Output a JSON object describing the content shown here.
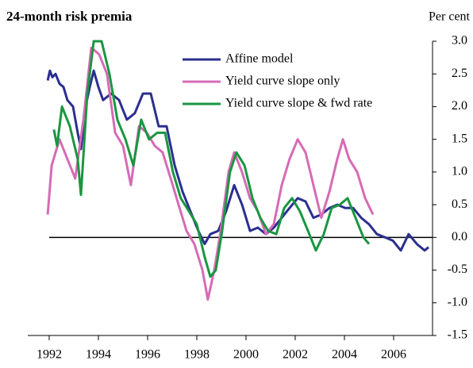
{
  "chart_data": {
    "type": "line",
    "title": "24-month risk premia",
    "y_axis_label": "Per cent",
    "xlim": [
      1991.13,
      2007.58
    ],
    "xticks": [
      1992,
      1994,
      1996,
      1998,
      2000,
      2002,
      2004,
      2006
    ],
    "ylim": [
      -1.5,
      3.0
    ],
    "yticks": [
      {
        "value": -1.5,
        "label": "-1.5"
      },
      {
        "value": -1,
        "label": "-1.0"
      },
      {
        "value": -0.5,
        "label": "-0.5"
      },
      {
        "value": 0,
        "label": "0.0"
      },
      {
        "value": 0.5,
        "label": "0.5"
      },
      {
        "value": 1,
        "label": "1.0"
      },
      {
        "value": 1.5,
        "label": "1.5"
      },
      {
        "value": 2,
        "label": "2.0"
      },
      {
        "value": 2.5,
        "label": "2.5"
      },
      {
        "value": 3,
        "label": "3.0"
      }
    ],
    "zero_line": true,
    "series": [
      {
        "name": "Affine model",
        "color": "#2b2f8f",
        "x": [
          1991.94,
          1992.03,
          1992.13,
          1992.26,
          1992.42,
          1992.58,
          1992.74,
          1992.97,
          1993.16,
          1993.29,
          1993.48,
          1993.65,
          1993.81,
          1994.0,
          1994.19,
          1994.52,
          1994.84,
          1995.16,
          1995.48,
          1995.81,
          1996.13,
          1996.45,
          1996.77,
          1997.1,
          1997.42,
          1997.74,
          1998.06,
          1998.32,
          1998.55,
          1998.87,
          1999.19,
          1999.52,
          1999.84,
          2000.16,
          2000.48,
          2000.81,
          2001.13,
          2001.45,
          2001.77,
          2002.1,
          2002.42,
          2002.74,
          2003.06,
          2003.39,
          2003.71,
          2004.03,
          2004.35,
          2004.68,
          2005.0,
          2005.32,
          2005.65,
          2005.97,
          2006.29,
          2006.61,
          2006.94,
          2007.26,
          2007.42
        ],
        "values": [
          2.4,
          2.55,
          2.45,
          2.5,
          2.35,
          2.3,
          2.1,
          2.0,
          1.6,
          1.35,
          2.0,
          2.3,
          2.55,
          2.3,
          2.1,
          2.2,
          2.1,
          1.8,
          1.9,
          2.2,
          2.2,
          1.7,
          1.7,
          1.1,
          0.7,
          0.4,
          0.1,
          -0.1,
          0.05,
          0.1,
          0.4,
          0.8,
          0.5,
          0.1,
          0.15,
          0.05,
          0.15,
          0.3,
          0.45,
          0.6,
          0.55,
          0.3,
          0.35,
          0.45,
          0.5,
          0.45,
          0.45,
          0.3,
          0.2,
          0.05,
          0,
          -0.05,
          -0.2,
          0.05,
          -0.1,
          -0.2,
          -0.15
        ]
      },
      {
        "name": "Yield curve slope only",
        "color": "#d66bb5",
        "x": [
          1991.94,
          1992.1,
          1992.42,
          1992.74,
          1993.06,
          1993.39,
          1993.71,
          1994.03,
          1994.35,
          1994.68,
          1995.0,
          1995.32,
          1995.65,
          1995.97,
          1996.29,
          1996.61,
          1996.94,
          1997.26,
          1997.58,
          1997.9,
          1998.23,
          1998.45,
          1998.71,
          1998.97,
          1999.29,
          1999.52,
          1999.84,
          2000.16,
          2000.48,
          2000.81,
          2001.13,
          2001.45,
          2001.77,
          2002.1,
          2002.42,
          2002.74,
          2003.06,
          2003.39,
          2003.71,
          2003.94,
          2004.19,
          2004.52,
          2004.84,
          2005.16
        ],
        "values": [
          0.35,
          1.1,
          1.5,
          1.2,
          0.9,
          1.8,
          2.9,
          2.8,
          2.5,
          1.6,
          1.4,
          0.8,
          1.7,
          1.6,
          1.4,
          1.3,
          0.9,
          0.5,
          0.1,
          -0.1,
          -0.5,
          -0.95,
          -0.5,
          0.1,
          1.0,
          1.3,
          1.0,
          0.6,
          0.4,
          0.05,
          0.2,
          0.8,
          1.2,
          1.5,
          1.3,
          0.8,
          0.3,
          0.7,
          1.2,
          1.5,
          1.2,
          1.0,
          0.6,
          0.35
        ]
      },
      {
        "name": "Yield curve slope & fwd rate",
        "color": "#1a9641",
        "x": [
          1992.19,
          1992.32,
          1992.52,
          1992.84,
          1993.16,
          1993.29,
          1993.55,
          1993.81,
          1994.13,
          1994.45,
          1994.77,
          1995.1,
          1995.42,
          1995.74,
          1996.06,
          1996.39,
          1996.71,
          1997.03,
          1997.35,
          1997.68,
          1998.0,
          1998.32,
          1998.55,
          1998.77,
          1999.03,
          1999.35,
          1999.61,
          1999.94,
          2000.26,
          2000.58,
          2000.9,
          2001.23,
          2001.55,
          2001.87,
          2002.19,
          2002.52,
          2002.84,
          2003.16,
          2003.48,
          2003.81,
          2004.13,
          2004.45,
          2004.77,
          2005.0
        ],
        "values": [
          1.65,
          1.4,
          2.0,
          1.7,
          1.2,
          0.65,
          2.2,
          3.0,
          3.0,
          2.5,
          1.8,
          1.5,
          1.1,
          1.8,
          1.5,
          1.6,
          1.6,
          1.0,
          0.6,
          0.4,
          0.2,
          -0.3,
          -0.6,
          -0.5,
          0.1,
          1.0,
          1.3,
          1.1,
          0.6,
          0.3,
          0.1,
          0.05,
          0.45,
          0.6,
          0.4,
          0.1,
          -0.2,
          0.05,
          0.45,
          0.5,
          0.6,
          0.3,
          0.0,
          -0.1
        ]
      }
    ]
  }
}
